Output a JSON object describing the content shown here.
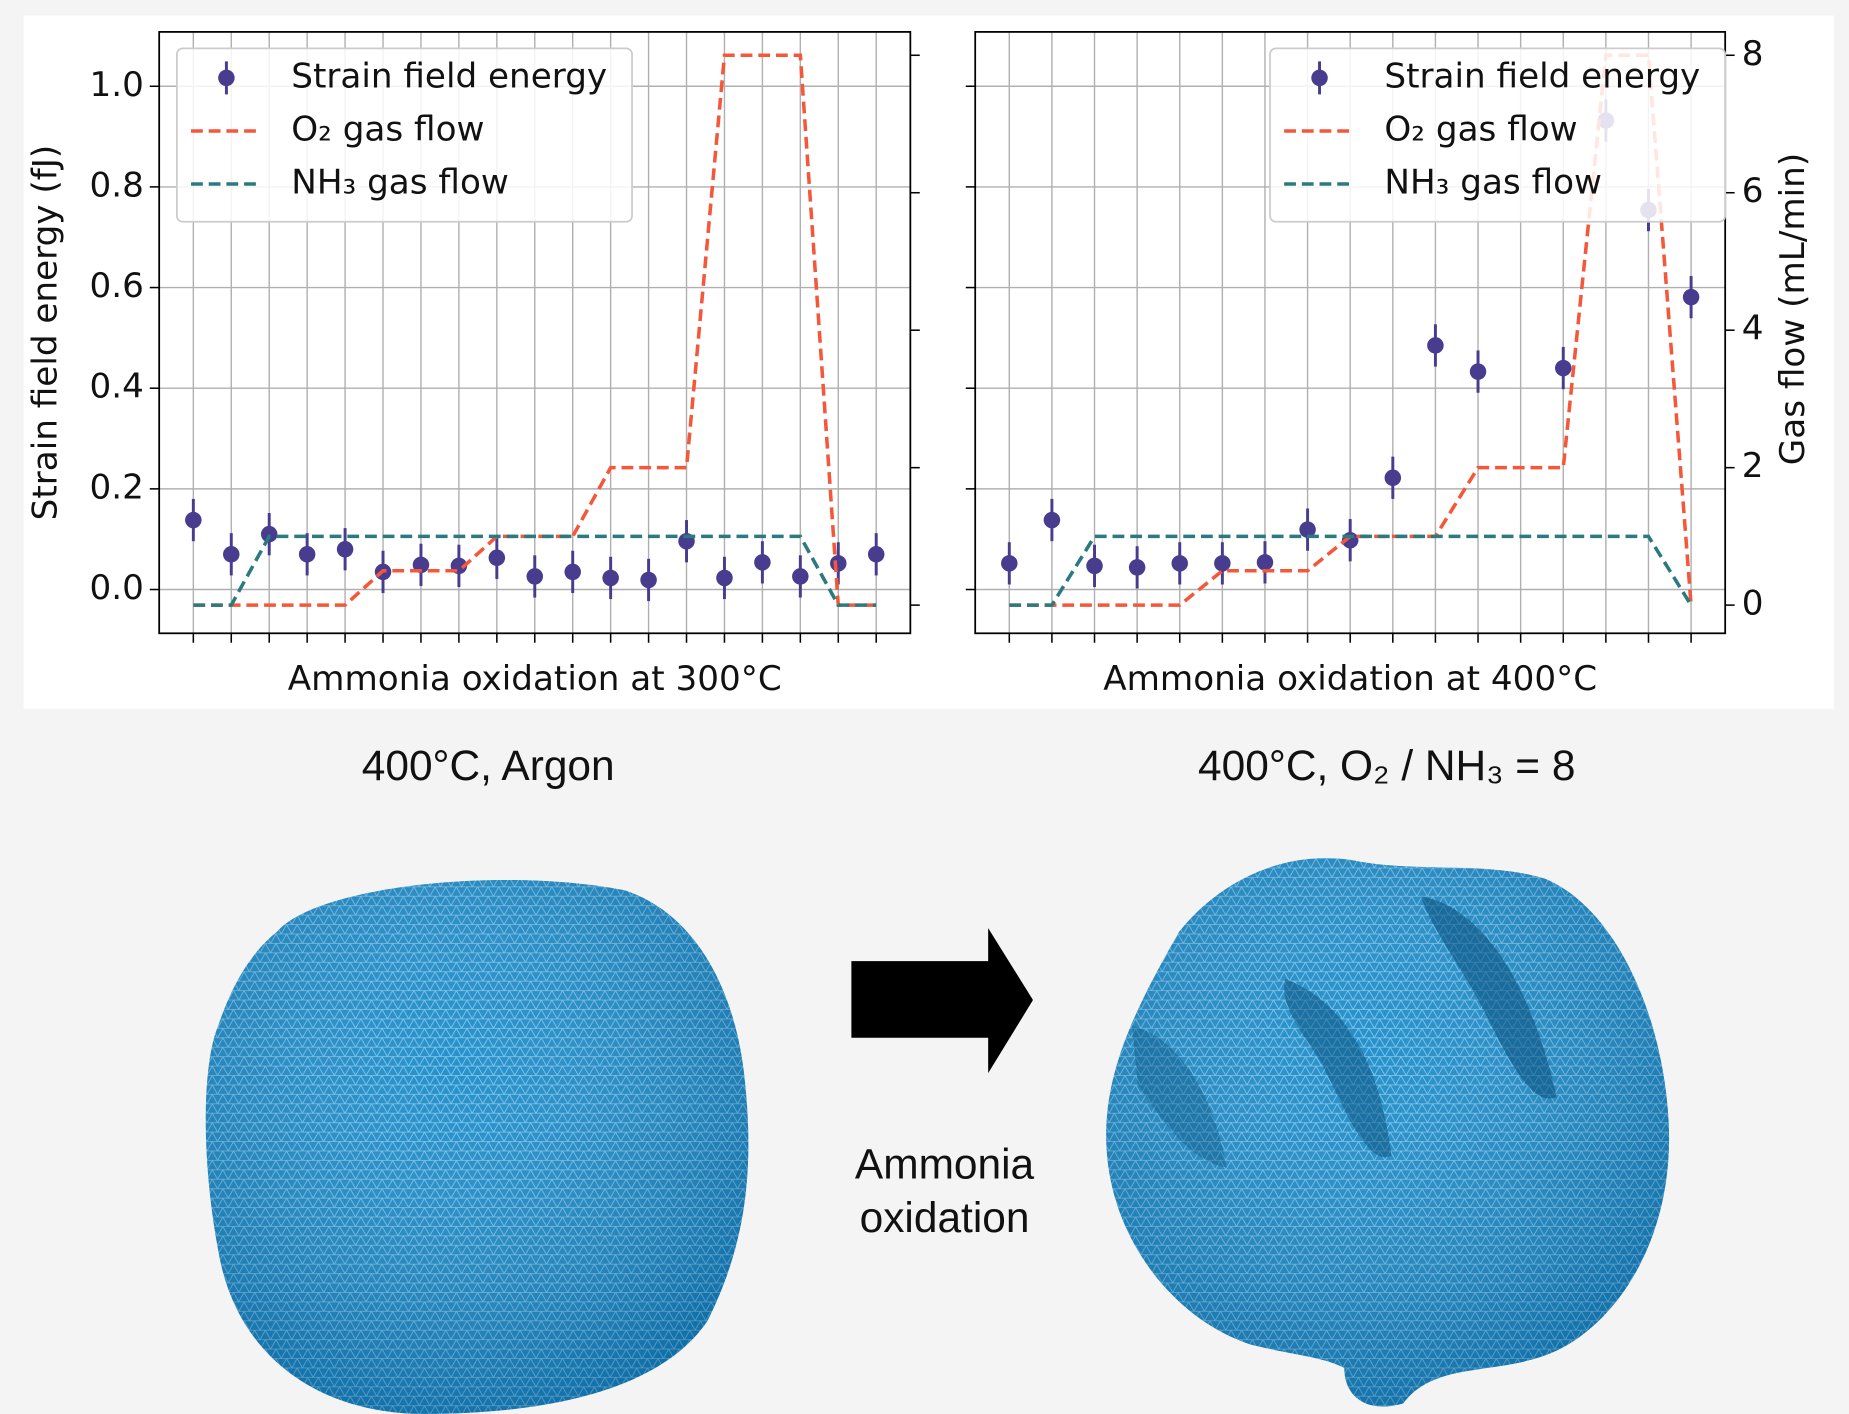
{
  "chart_data": [
    {
      "type": "line",
      "xlabel": "Ammonia oxidation at 300°C",
      "ylabel": "Strain field energy (fJ)",
      "categories": [
        null,
        null,
        null,
        null,
        null,
        null,
        null,
        null,
        null,
        null,
        null,
        null,
        null,
        null,
        null,
        null,
        null,
        null,
        null
      ],
      "ylim": [
        -0.087,
        1.108
      ],
      "yticks": [
        {
          "value": 0,
          "label": "0.0"
        },
        0.2,
        0.4,
        0.6,
        0.8,
        {
          "value": 1,
          "label": "1.0"
        }
      ],
      "y2lim": [
        -0.41,
        8.34
      ],
      "y2ticks": [
        0,
        2,
        4,
        6,
        8
      ],
      "ytick_labels": true,
      "y2tick_labels": false,
      "grid": true,
      "legend": "upper left",
      "series": [
        {
          "name": "Strain field energy",
          "color": "#483c8f",
          "style": "errorbar",
          "values": [
            0.138,
            0.07,
            0.11,
            0.07,
            0.08,
            0.035,
            0.049,
            0.047,
            0.063,
            0.026,
            0.035,
            0.023,
            0.019,
            0.096,
            0.023,
            0.054,
            0.026,
            0.052,
            0.07
          ],
          "errors": [
            0.042,
            0.042,
            0.042,
            0.042,
            0.042,
            0.042,
            0.042,
            0.042,
            0.042,
            0.042,
            0.042,
            0.042,
            0.042,
            0.042,
            0.042,
            0.042,
            0.042,
            0.042,
            0.042
          ]
        },
        {
          "name": "O₂ gas flow",
          "color": "#f4573a",
          "style": "dashed",
          "axis": "y2",
          "values": [
            0,
            0,
            0,
            0,
            0,
            0.5,
            0.5,
            0.5,
            1,
            1,
            1,
            2,
            2,
            2,
            8,
            8,
            8,
            0,
            0
          ]
        },
        {
          "name": "NH₃ gas flow",
          "color": "#2b7a80",
          "style": "dashed",
          "axis": "y2",
          "values": [
            0,
            0,
            1,
            1,
            1,
            1,
            1,
            1,
            1,
            1,
            1,
            1,
            1,
            1,
            1,
            1,
            1,
            0,
            0
          ]
        }
      ]
    },
    {
      "type": "line",
      "xlabel": "Ammonia oxidation at 400°C",
      "y2label": "Gas flow (mL/min)",
      "categories": [
        null,
        null,
        null,
        null,
        null,
        null,
        null,
        null,
        null,
        null,
        null,
        null,
        null,
        null,
        null,
        null,
        null
      ],
      "ylim": [
        -0.087,
        1.108
      ],
      "yticks": [
        {
          "value": 0,
          "label": "0.0"
        },
        0.2,
        0.4,
        0.6,
        0.8,
        {
          "value": 1,
          "label": "1.0"
        }
      ],
      "y2lim": [
        -0.41,
        8.34
      ],
      "y2ticks": [
        0,
        2,
        4,
        6,
        8
      ],
      "ytick_labels": false,
      "y2tick_labels": true,
      "grid": true,
      "legend": "upper center",
      "series": [
        {
          "name": "Strain field energy",
          "color": "#483c8f",
          "style": "errorbar",
          "values": [
            0.052,
            0.138,
            0.047,
            0.044,
            0.052,
            0.052,
            0.054,
            0.119,
            0.098,
            0.222,
            0.485,
            0.433,
            null,
            0.44,
            0.932,
            0.754,
            0.581
          ],
          "errors": [
            0.042,
            0.042,
            0.042,
            0.042,
            0.042,
            0.042,
            0.042,
            0.042,
            0.042,
            0.042,
            0.042,
            0.042,
            null,
            0.042,
            0.042,
            0.042,
            0.042
          ]
        },
        {
          "name": "O₂ gas flow",
          "color": "#f4573a",
          "style": "dashed",
          "axis": "y2",
          "values": [
            0,
            0,
            0,
            0,
            0,
            0.5,
            0.5,
            0.5,
            1,
            1,
            1,
            2,
            2,
            2,
            8,
            8,
            0
          ]
        },
        {
          "name": "NH₃ gas flow",
          "color": "#2b7a80",
          "style": "dashed",
          "axis": "y2",
          "values": [
            0,
            0,
            1,
            1,
            1,
            1,
            1,
            1,
            1,
            1,
            1,
            1,
            1,
            1,
            1,
            1,
            0
          ]
        }
      ]
    }
  ],
  "panels": {
    "left_title": "400°C, Argon",
    "right_title": "400°C, O₂ / NH₃ = 8",
    "arrow_label": [
      "Ammonia",
      "oxidation"
    ]
  }
}
